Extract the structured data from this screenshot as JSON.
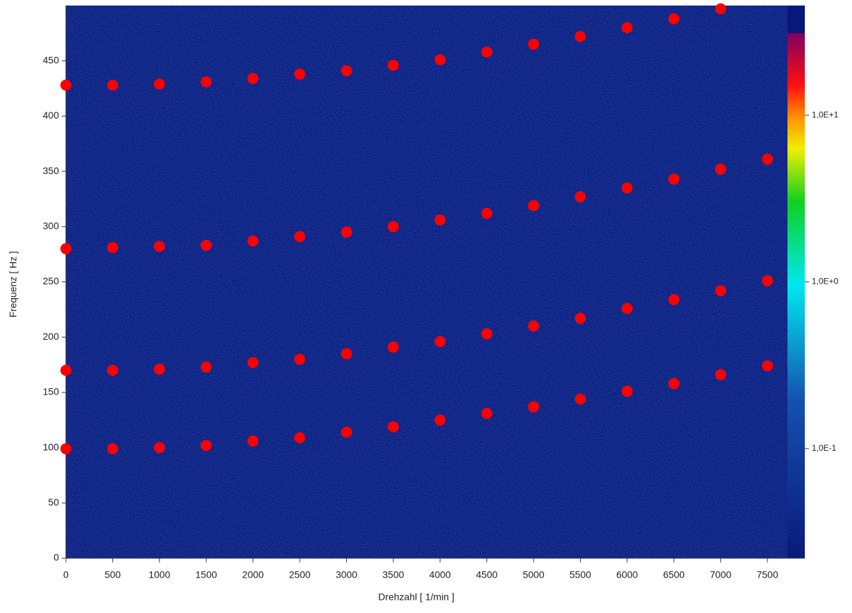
{
  "chart_data": {
    "type": "scatter",
    "xlabel": "Drehzahl [ 1/min ]",
    "ylabel": "Frequenz [ Hz ]",
    "xlim": [
      0,
      7900
    ],
    "ylim": [
      0,
      500
    ],
    "xticks": [
      0,
      500,
      1000,
      1500,
      2000,
      2500,
      3000,
      3500,
      4000,
      4500,
      5000,
      5500,
      6000,
      6500,
      7000,
      7500
    ],
    "yticks": [
      0,
      50,
      100,
      150,
      200,
      250,
      300,
      350,
      400,
      450
    ],
    "series": [
      {
        "color": "#ff0000",
        "x": [
          0,
          500,
          1000,
          1500,
          2000,
          2500,
          3000,
          3500,
          4000,
          4500,
          5000,
          5500,
          6000,
          6500,
          7000,
          7500
        ],
        "values": [
          99,
          99,
          100,
          102,
          106,
          109,
          114,
          119,
          125,
          131,
          137,
          144,
          151,
          158,
          166,
          174
        ]
      },
      {
        "color": "#ff0000",
        "x": [
          0,
          500,
          1000,
          1500,
          2000,
          2500,
          3000,
          3500,
          4000,
          4500,
          5000,
          5500,
          6000,
          6500,
          7000,
          7500
        ],
        "values": [
          170,
          170,
          171,
          173,
          177,
          180,
          185,
          191,
          196,
          203,
          210,
          217,
          226,
          234,
          242,
          251
        ]
      },
      {
        "color": "#ff0000",
        "x": [
          0,
          500,
          1000,
          1500,
          2000,
          2500,
          3000,
          3500,
          4000,
          4500,
          5000,
          5500,
          6000,
          6500,
          7000,
          7500
        ],
        "values": [
          280,
          281,
          282,
          283,
          287,
          291,
          295,
          300,
          306,
          312,
          319,
          327,
          335,
          343,
          352,
          361
        ]
      },
      {
        "color": "#ff0000",
        "x": [
          0,
          500,
          1000,
          1500,
          2000,
          2500,
          3000,
          3500,
          4000,
          4500,
          5000,
          5500,
          6000,
          6500,
          7000
        ],
        "values": [
          428,
          428,
          429,
          431,
          434,
          438,
          441,
          446,
          451,
          458,
          465,
          472,
          480,
          488,
          497
        ]
      }
    ],
    "colorbar": {
      "scale": "log",
      "clim": [
        0.022,
        31
      ],
      "ticks": [
        {
          "value": 10,
          "label": "1,0E+1"
        },
        {
          "value": 1,
          "label": "1,0E+0"
        },
        {
          "value": 0.1,
          "label": "1,0E-1"
        }
      ]
    }
  }
}
